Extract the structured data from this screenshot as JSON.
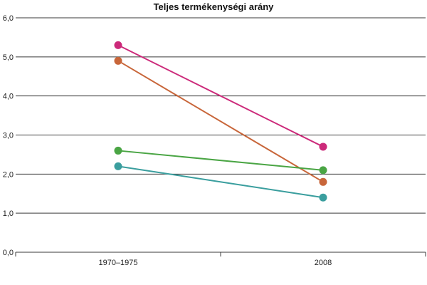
{
  "chart_data": {
    "type": "line",
    "title": "Teljes termékenységi arány",
    "categories": [
      "1970–1975",
      "2008"
    ],
    "y_tick_labels": [
      "0,0",
      "1,0",
      "2,0",
      "3,0",
      "4,0",
      "5,0",
      "6,0"
    ],
    "ylim": [
      0,
      6
    ],
    "grid": true,
    "legend": "none",
    "series": [
      {
        "color": "#cc2a7a",
        "values": [
          5.3,
          2.7
        ]
      },
      {
        "color": "#c8663a",
        "values": [
          4.9,
          1.8
        ]
      },
      {
        "color": "#4aa544",
        "values": [
          2.6,
          2.1
        ]
      },
      {
        "color": "#3a9e9e",
        "values": [
          2.2,
          1.4
        ]
      }
    ]
  }
}
